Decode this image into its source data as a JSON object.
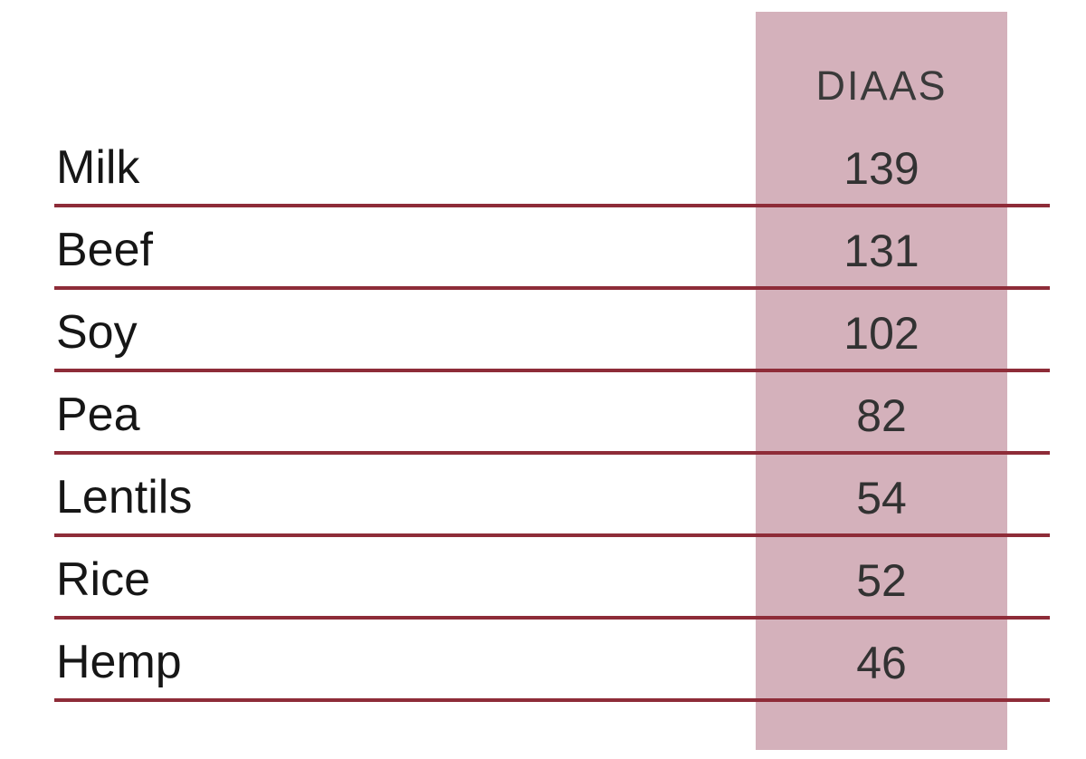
{
  "table": {
    "header": "DIAAS",
    "rows": [
      {
        "label": "Milk",
        "value": "139"
      },
      {
        "label": "Beef",
        "value": "131"
      },
      {
        "label": "Soy",
        "value": "102"
      },
      {
        "label": "Pea",
        "value": "82"
      },
      {
        "label": "Lentils",
        "value": "54"
      },
      {
        "label": "Rice",
        "value": "52"
      },
      {
        "label": "Hemp",
        "value": "46"
      }
    ]
  },
  "colors": {
    "band": "#d4b1bb",
    "line": "#8e2c38",
    "label_text": "#161616",
    "value_text": "#323232",
    "header_text": "#3a3a3a",
    "bg": "#ffffff"
  },
  "chart_data": {
    "type": "table",
    "title": "",
    "column_header": "DIAAS",
    "categories": [
      "Milk",
      "Beef",
      "Soy",
      "Pea",
      "Lentils",
      "Rice",
      "Hemp"
    ],
    "values": [
      139,
      131,
      102,
      82,
      54,
      52,
      46
    ],
    "layout_hints": {
      "highlight_band_column": "DIAAS",
      "row_rules": true,
      "header_row_rule": false
    }
  }
}
